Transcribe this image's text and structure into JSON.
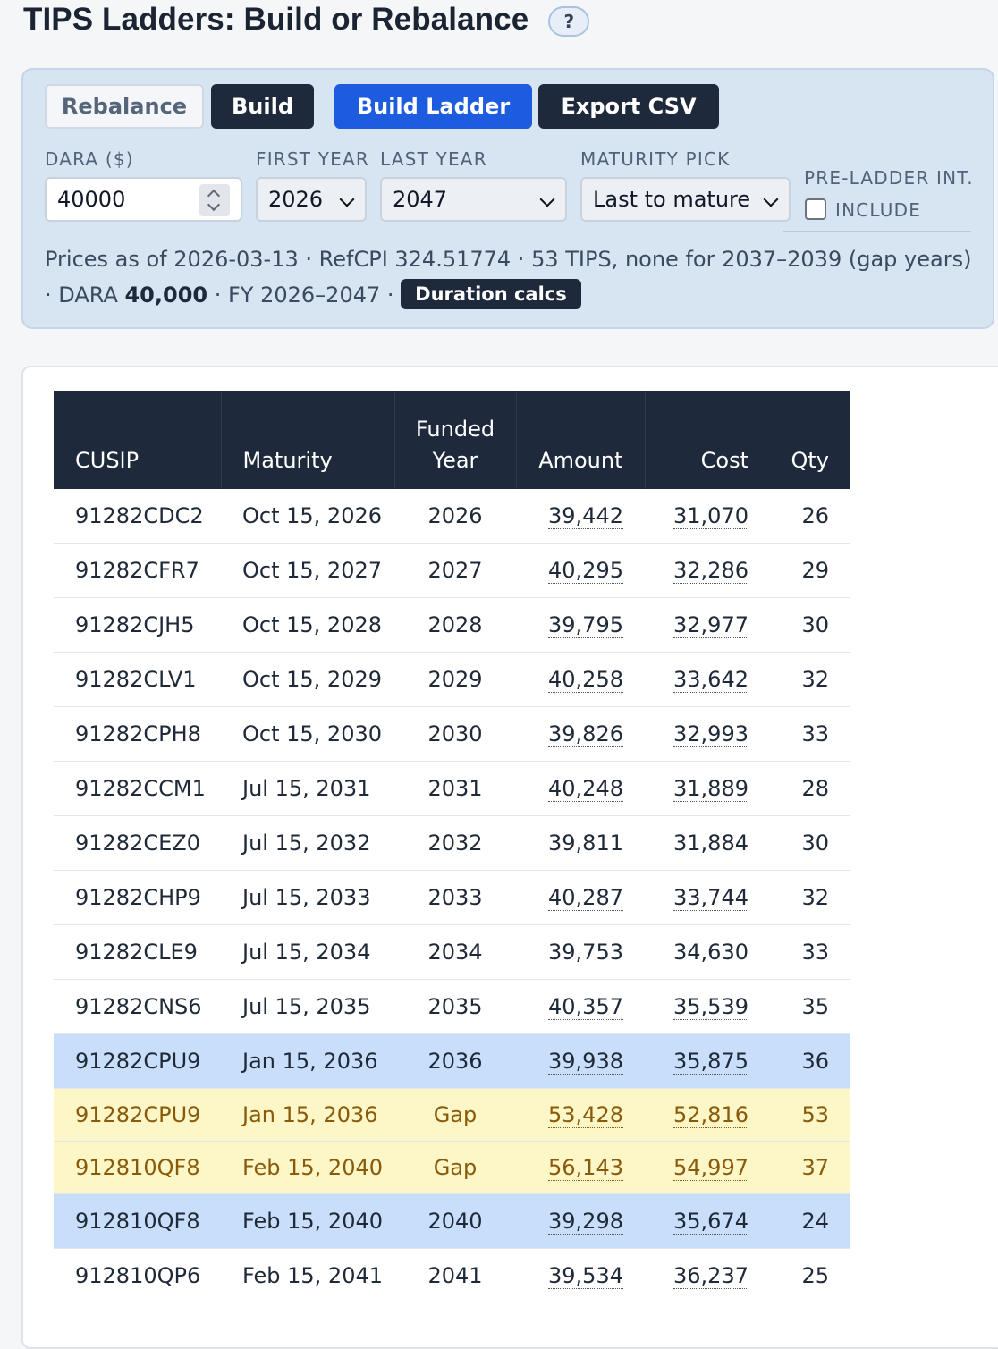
{
  "header": {
    "title": "TIPS Ladders: Build or Rebalance",
    "help_label": "?"
  },
  "toolbar": {
    "rebalance_label": "Rebalance",
    "build_label": "Build",
    "build_ladder_label": "Build Ladder",
    "export_label": "Export CSV"
  },
  "form": {
    "dara_label": "DARA ($)",
    "dara_value": "40000",
    "first_year_label": "FIRST YEAR",
    "first_year_value": "2026",
    "last_year_label": "LAST YEAR",
    "last_year_value": "2047",
    "maturity_pick_label": "MATURITY PICK",
    "maturity_pick_value": "Last to mature",
    "pre_ladder_label": "PRE-LADDER INT.",
    "include_label": "INCLUDE",
    "include_checked": false
  },
  "info": {
    "line1": "Prices as of 2026-03-13 · RefCPI 324.51774 · 53 TIPS, none for 2037–2039 (gap years)",
    "dara_prefix": "· DARA ",
    "dara_bold": "40,000",
    "fy_text": " · FY 2026–2047 · ",
    "duration_label": "Duration calcs"
  },
  "table": {
    "headers": {
      "cusip": "CUSIP",
      "maturity": "Maturity",
      "funded_line1": "Funded",
      "funded_line2": "Year",
      "amount": "Amount",
      "cost": "Cost",
      "qty": "Qty"
    },
    "rows": [
      {
        "cusip": "91282CDC2",
        "maturity": "Oct 15, 2026",
        "funded_year": "2026",
        "amount": "39,442",
        "cost": "31,070",
        "qty": "26",
        "style": "normal"
      },
      {
        "cusip": "91282CFR7",
        "maturity": "Oct 15, 2027",
        "funded_year": "2027",
        "amount": "40,295",
        "cost": "32,286",
        "qty": "29",
        "style": "normal"
      },
      {
        "cusip": "91282CJH5",
        "maturity": "Oct 15, 2028",
        "funded_year": "2028",
        "amount": "39,795",
        "cost": "32,977",
        "qty": "30",
        "style": "normal"
      },
      {
        "cusip": "91282CLV1",
        "maturity": "Oct 15, 2029",
        "funded_year": "2029",
        "amount": "40,258",
        "cost": "33,642",
        "qty": "32",
        "style": "normal"
      },
      {
        "cusip": "91282CPH8",
        "maturity": "Oct 15, 2030",
        "funded_year": "2030",
        "amount": "39,826",
        "cost": "32,993",
        "qty": "33",
        "style": "normal"
      },
      {
        "cusip": "91282CCM1",
        "maturity": "Jul 15, 2031",
        "funded_year": "2031",
        "amount": "40,248",
        "cost": "31,889",
        "qty": "28",
        "style": "normal"
      },
      {
        "cusip": "91282CEZ0",
        "maturity": "Jul 15, 2032",
        "funded_year": "2032",
        "amount": "39,811",
        "cost": "31,884",
        "qty": "30",
        "style": "normal"
      },
      {
        "cusip": "91282CHP9",
        "maturity": "Jul 15, 2033",
        "funded_year": "2033",
        "amount": "40,287",
        "cost": "33,744",
        "qty": "32",
        "style": "normal"
      },
      {
        "cusip": "91282CLE9",
        "maturity": "Jul 15, 2034",
        "funded_year": "2034",
        "amount": "39,753",
        "cost": "34,630",
        "qty": "33",
        "style": "normal"
      },
      {
        "cusip": "91282CNS6",
        "maturity": "Jul 15, 2035",
        "funded_year": "2035",
        "amount": "40,357",
        "cost": "35,539",
        "qty": "35",
        "style": "normal"
      },
      {
        "cusip": "91282CPU9",
        "maturity": "Jan 15, 2036",
        "funded_year": "2036",
        "amount": "39,938",
        "cost": "35,875",
        "qty": "36",
        "style": "blue"
      },
      {
        "cusip": "91282CPU9",
        "maturity": "Jan 15, 2036",
        "funded_year": "Gap",
        "amount": "53,428",
        "cost": "52,816",
        "qty": "53",
        "style": "gap"
      },
      {
        "cusip": "912810QF8",
        "maturity": "Feb 15, 2040",
        "funded_year": "Gap",
        "amount": "56,143",
        "cost": "54,997",
        "qty": "37",
        "style": "gap"
      },
      {
        "cusip": "912810QF8",
        "maturity": "Feb 15, 2040",
        "funded_year": "2040",
        "amount": "39,298",
        "cost": "35,674",
        "qty": "24",
        "style": "blue"
      },
      {
        "cusip": "912810QP6",
        "maturity": "Feb 15, 2041",
        "funded_year": "2041",
        "amount": "39,534",
        "cost": "36,237",
        "qty": "25",
        "style": "normal"
      }
    ]
  }
}
